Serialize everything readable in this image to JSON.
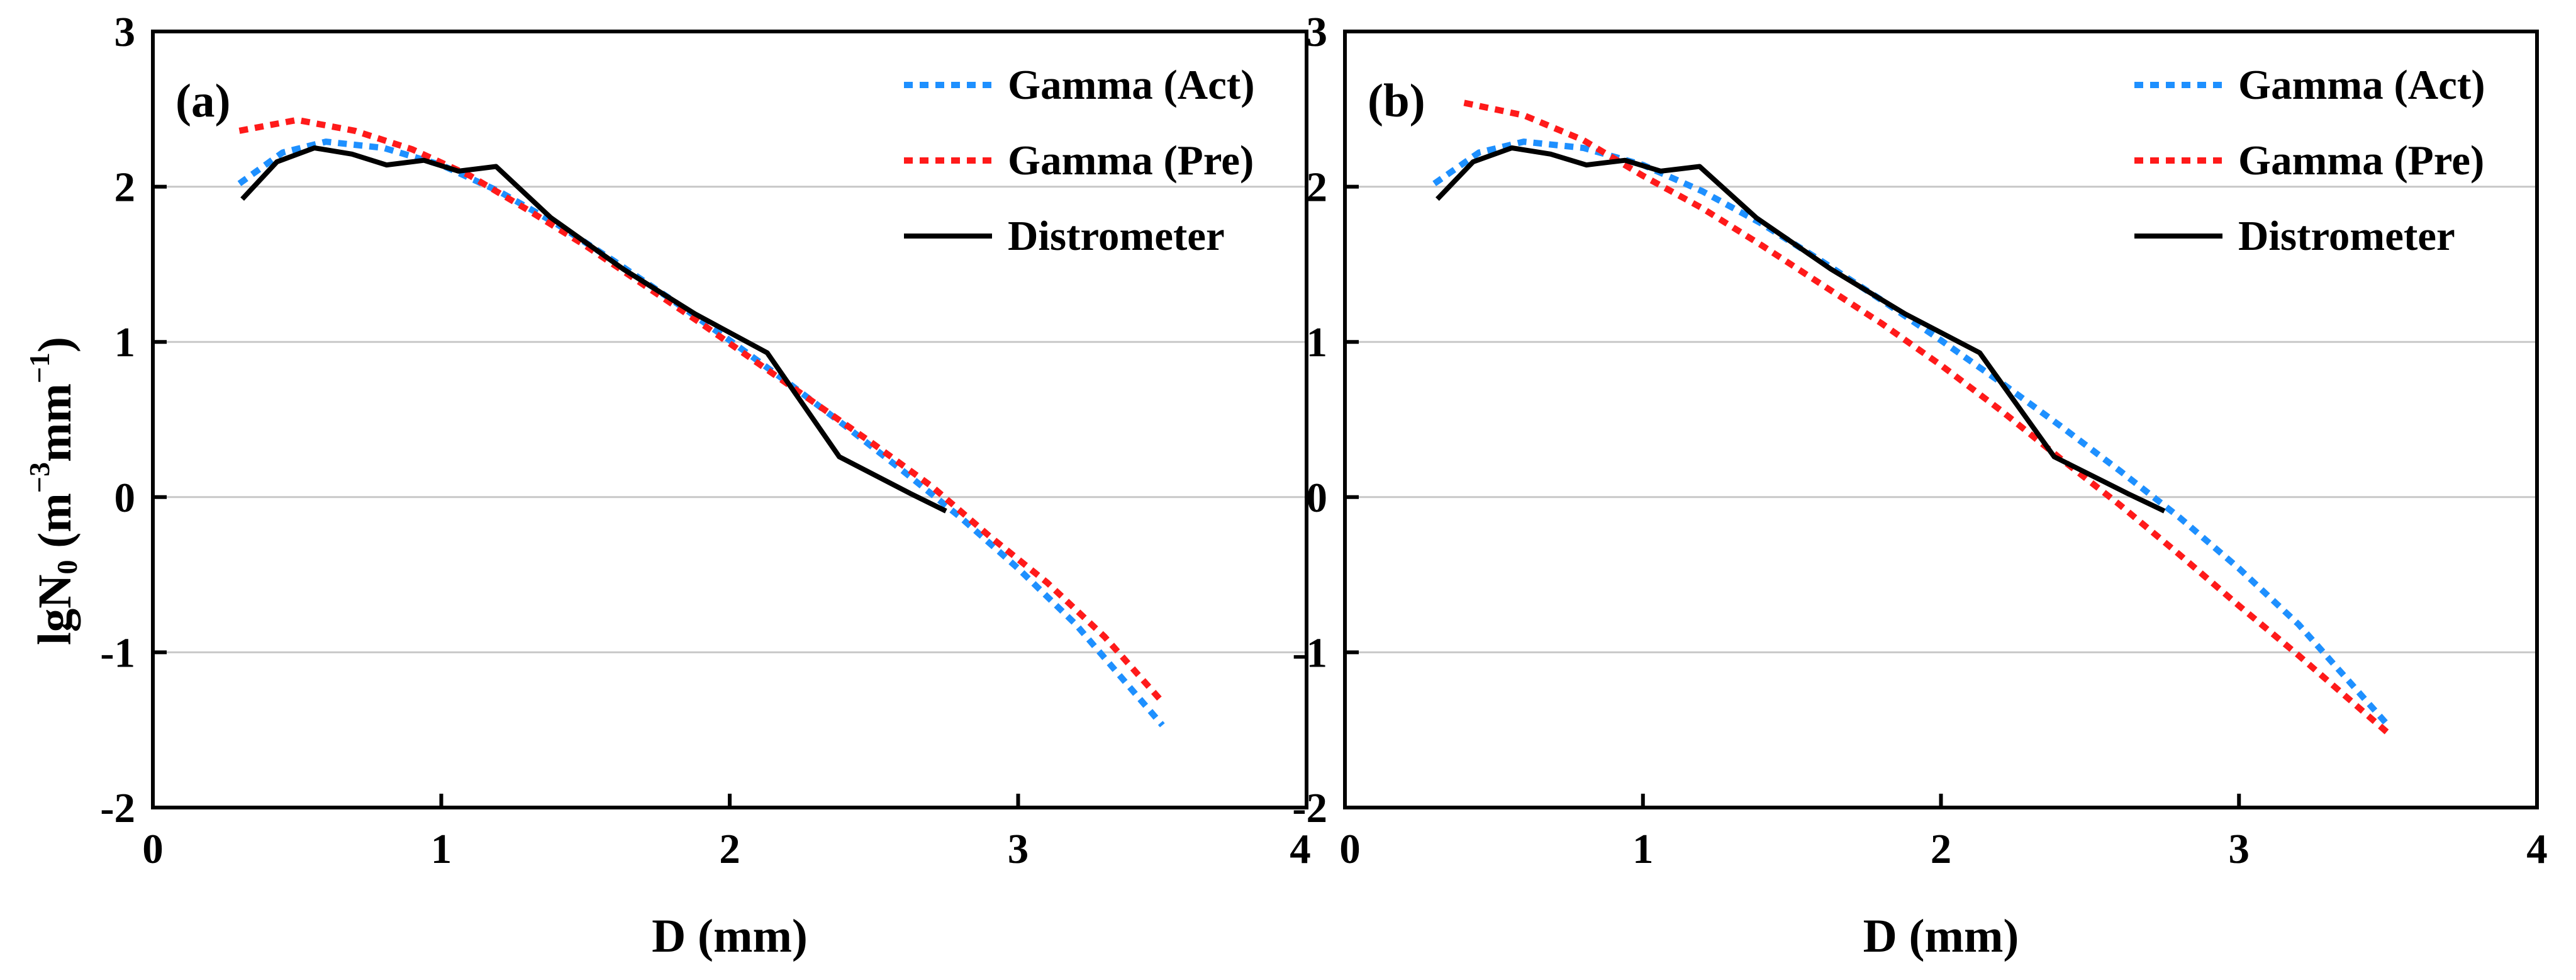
{
  "figure": {
    "ylabel_parts": [
      "lgN",
      "0",
      " (m",
      "−3",
      "mm",
      "−1",
      ")"
    ],
    "xlabel": "D (mm)"
  },
  "colors": {
    "gamma_act": "#1E90FF",
    "gamma_pre": "#FF1A1A",
    "distrometer": "#000000",
    "grid": "#c8c8c8",
    "frame": "#000000"
  },
  "chart_data": [
    {
      "type": "line",
      "panel_label": "(a)",
      "xlabel": "D (mm)",
      "ylabel": "lgN0 (m−3mm−1)",
      "xlim": [
        0,
        4
      ],
      "ylim": [
        -2,
        3
      ],
      "xticks": [
        0,
        1,
        2,
        3,
        4
      ],
      "xtick_labels": [
        "0",
        "1",
        "2",
        "3",
        "4"
      ],
      "yticks": [
        -2,
        -1,
        0,
        1,
        2,
        3
      ],
      "ytick_labels": [
        "-2",
        "-1",
        "0",
        "1",
        "2",
        "3"
      ],
      "grid": "horizontal",
      "legend_position": "top-right",
      "series": [
        {
          "name": "Gamma (Act)",
          "style": "dotted",
          "x": [
            0.3,
            0.45,
            0.6,
            0.8,
            1.0,
            1.2,
            1.4,
            1.6,
            1.8,
            2.0,
            2.2,
            2.4,
            2.6,
            2.8,
            3.0,
            3.2,
            3.5
          ],
          "y": [
            2.02,
            2.22,
            2.29,
            2.25,
            2.14,
            1.97,
            1.76,
            1.52,
            1.27,
            1.01,
            0.74,
            0.46,
            0.17,
            -0.13,
            -0.46,
            -0.82,
            -1.47
          ]
        },
        {
          "name": "Gamma (Pre)",
          "style": "dotted",
          "x": [
            0.3,
            0.5,
            0.7,
            0.9,
            1.1,
            1.3,
            1.5,
            1.7,
            1.9,
            2.1,
            2.3,
            2.5,
            2.7,
            2.9,
            3.1,
            3.3,
            3.5
          ],
          "y": [
            2.36,
            2.43,
            2.36,
            2.24,
            2.07,
            1.85,
            1.62,
            1.37,
            1.12,
            0.86,
            0.6,
            0.34,
            0.07,
            -0.25,
            -0.55,
            -0.9,
            -1.32
          ]
        },
        {
          "name": "Distrometer",
          "style": "solid",
          "x": [
            0.31,
            0.43,
            0.56,
            0.69,
            0.81,
            0.94,
            1.06,
            1.19,
            1.38,
            1.63,
            1.88,
            2.13,
            2.38,
            2.63,
            2.75
          ],
          "y": [
            1.92,
            2.16,
            2.25,
            2.21,
            2.14,
            2.17,
            2.1,
            2.13,
            1.8,
            1.47,
            1.18,
            0.93,
            0.26,
            0.02,
            -0.09
          ]
        }
      ]
    },
    {
      "type": "line",
      "panel_label": "(b)",
      "xlabel": "D (mm)",
      "ylabel": "",
      "xlim": [
        0,
        4
      ],
      "ylim": [
        -2,
        3
      ],
      "xticks": [
        0,
        1,
        2,
        3,
        4
      ],
      "xtick_labels": [
        "0",
        "1",
        "2",
        "3",
        "4"
      ],
      "yticks": [
        -2,
        -1,
        0,
        1,
        2,
        3
      ],
      "ytick_labels": [
        "-2",
        "-1",
        "0",
        "1",
        "2",
        "3"
      ],
      "grid": "horizontal",
      "legend_position": "top-right",
      "series": [
        {
          "name": "Gamma (Act)",
          "style": "dotted",
          "x": [
            0.3,
            0.45,
            0.6,
            0.8,
            1.0,
            1.2,
            1.4,
            1.6,
            1.8,
            2.0,
            2.2,
            2.4,
            2.6,
            2.8,
            3.0,
            3.2,
            3.5
          ],
          "y": [
            2.02,
            2.22,
            2.29,
            2.25,
            2.14,
            1.97,
            1.76,
            1.52,
            1.27,
            1.01,
            0.74,
            0.46,
            0.17,
            -0.13,
            -0.46,
            -0.82,
            -1.47
          ]
        },
        {
          "name": "Gamma (Pre)",
          "style": "dotted",
          "x": [
            0.4,
            0.6,
            0.8,
            1.0,
            1.2,
            1.4,
            1.6,
            1.8,
            2.0,
            2.2,
            2.4,
            2.6,
            2.8,
            3.0,
            3.2,
            3.5
          ],
          "y": [
            2.54,
            2.46,
            2.3,
            2.07,
            1.86,
            1.62,
            1.37,
            1.12,
            0.85,
            0.56,
            0.25,
            -0.05,
            -0.37,
            -0.7,
            -1.02,
            -1.52
          ]
        },
        {
          "name": "Distrometer",
          "style": "solid",
          "x": [
            0.31,
            0.43,
            0.56,
            0.69,
            0.81,
            0.94,
            1.06,
            1.19,
            1.38,
            1.63,
            1.88,
            2.13,
            2.38,
            2.63,
            2.75
          ],
          "y": [
            1.92,
            2.16,
            2.25,
            2.21,
            2.14,
            2.17,
            2.1,
            2.13,
            1.8,
            1.47,
            1.18,
            0.93,
            0.26,
            0.02,
            -0.09
          ]
        }
      ]
    }
  ]
}
